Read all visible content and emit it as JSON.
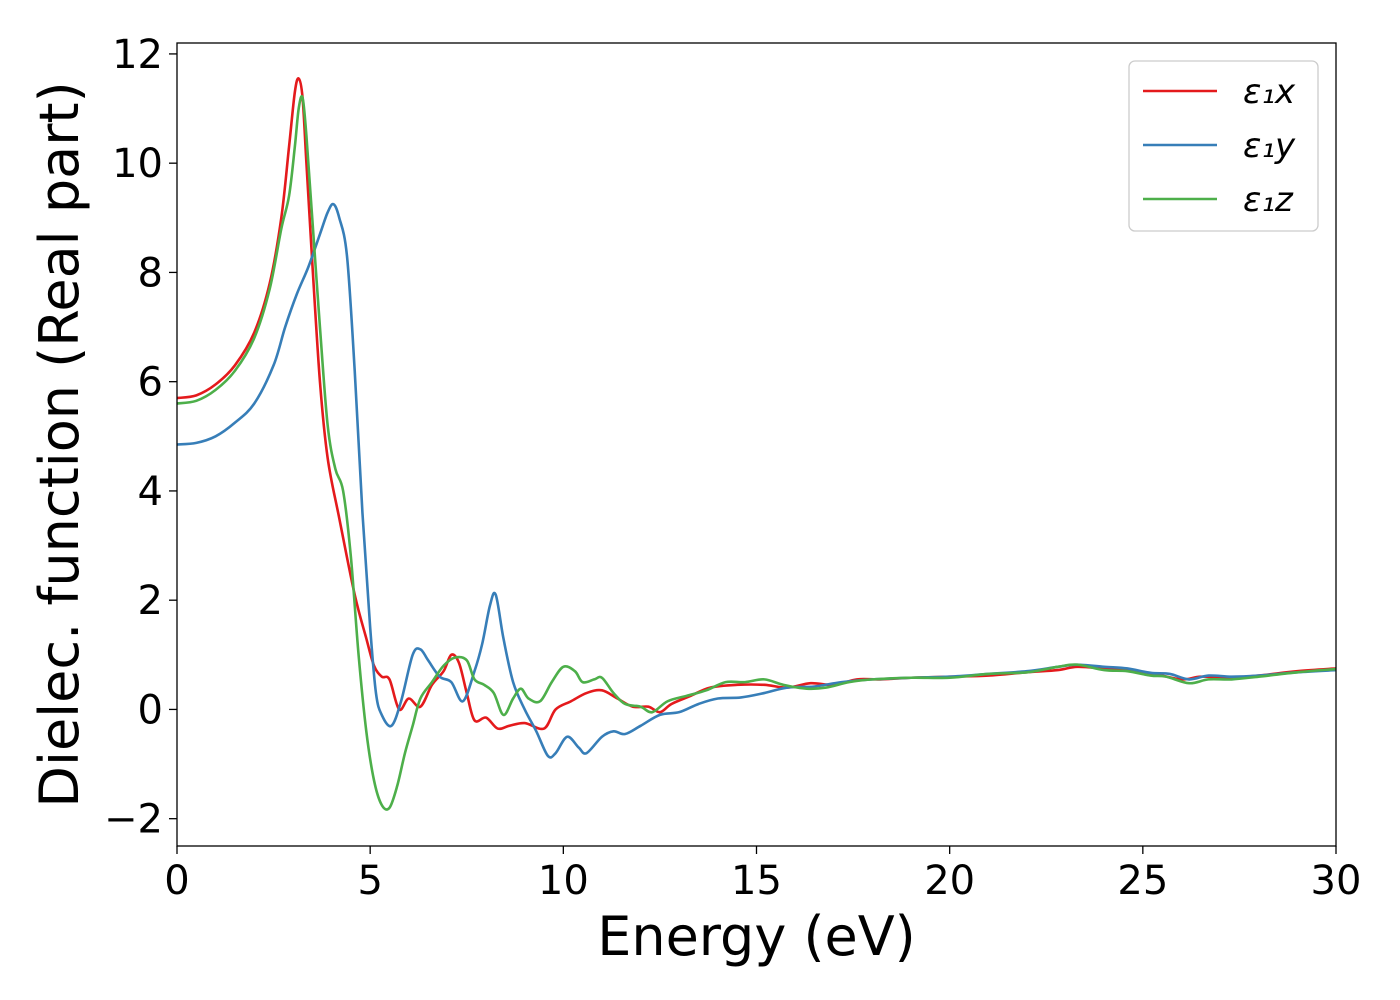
{
  "chart_data": {
    "type": "line",
    "title": "",
    "xlabel": "Energy (eV)",
    "ylabel": "Dielec. function (Real part)",
    "xlim": [
      0,
      30
    ],
    "ylim": [
      -2.5,
      12.2
    ],
    "xticks": [
      0,
      5,
      10,
      15,
      20,
      25,
      30
    ],
    "xtick_labels": [
      "0",
      "5",
      "10",
      "15",
      "20",
      "25",
      "30"
    ],
    "yticks": [
      -2,
      0,
      2,
      4,
      6,
      8,
      10,
      12
    ],
    "ytick_labels": [
      "−2",
      "0",
      "2",
      "4",
      "6",
      "8",
      "10",
      "12"
    ],
    "grid": false,
    "legend_position": "top-right",
    "series": [
      {
        "name": "ε₁x",
        "color": "#e41a1c",
        "points": [
          [
            0,
            5.7
          ],
          [
            0.5,
            5.75
          ],
          [
            1,
            5.95
          ],
          [
            1.5,
            6.3
          ],
          [
            2,
            6.9
          ],
          [
            2.4,
            7.8
          ],
          [
            2.7,
            9.0
          ],
          [
            2.9,
            10.3
          ],
          [
            3.05,
            11.3
          ],
          [
            3.15,
            11.55
          ],
          [
            3.25,
            11.2
          ],
          [
            3.35,
            10.0
          ],
          [
            3.5,
            8.2
          ],
          [
            3.7,
            6.0
          ],
          [
            3.9,
            4.6
          ],
          [
            4.2,
            3.5
          ],
          [
            4.6,
            2.1
          ],
          [
            4.9,
            1.3
          ],
          [
            5.1,
            0.8
          ],
          [
            5.3,
            0.6
          ],
          [
            5.5,
            0.55
          ],
          [
            5.75,
            0.0
          ],
          [
            6.0,
            0.2
          ],
          [
            6.3,
            0.05
          ],
          [
            6.6,
            0.45
          ],
          [
            6.9,
            0.7
          ],
          [
            7.1,
            1.0
          ],
          [
            7.3,
            0.85
          ],
          [
            7.5,
            0.3
          ],
          [
            7.7,
            -0.2
          ],
          [
            8.0,
            -0.15
          ],
          [
            8.3,
            -0.35
          ],
          [
            8.6,
            -0.3
          ],
          [
            9.0,
            -0.25
          ],
          [
            9.5,
            -0.35
          ],
          [
            9.8,
            0.0
          ],
          [
            10.2,
            0.15
          ],
          [
            10.6,
            0.3
          ],
          [
            11.0,
            0.35
          ],
          [
            11.4,
            0.2
          ],
          [
            11.8,
            0.05
          ],
          [
            12.2,
            0.05
          ],
          [
            12.5,
            -0.05
          ],
          [
            12.8,
            0.1
          ],
          [
            13.3,
            0.25
          ],
          [
            13.8,
            0.4
          ],
          [
            14.5,
            0.45
          ],
          [
            15.2,
            0.45
          ],
          [
            15.8,
            0.4
          ],
          [
            16.4,
            0.48
          ],
          [
            17.0,
            0.45
          ],
          [
            17.6,
            0.55
          ],
          [
            18.2,
            0.55
          ],
          [
            19.0,
            0.58
          ],
          [
            20.0,
            0.6
          ],
          [
            21.0,
            0.62
          ],
          [
            22.0,
            0.68
          ],
          [
            22.8,
            0.72
          ],
          [
            23.3,
            0.78
          ],
          [
            24.0,
            0.75
          ],
          [
            24.6,
            0.72
          ],
          [
            25.3,
            0.65
          ],
          [
            26.0,
            0.55
          ],
          [
            26.5,
            0.6
          ],
          [
            27.2,
            0.58
          ],
          [
            28.0,
            0.62
          ],
          [
            29.0,
            0.7
          ],
          [
            30.0,
            0.75
          ]
        ]
      },
      {
        "name": "ε₁y",
        "color": "#377eb8",
        "points": [
          [
            0,
            4.85
          ],
          [
            0.5,
            4.88
          ],
          [
            1,
            5.0
          ],
          [
            1.5,
            5.25
          ],
          [
            2,
            5.6
          ],
          [
            2.5,
            6.3
          ],
          [
            2.8,
            7.0
          ],
          [
            3.1,
            7.6
          ],
          [
            3.4,
            8.1
          ],
          [
            3.7,
            8.7
          ],
          [
            3.9,
            9.1
          ],
          [
            4.05,
            9.25
          ],
          [
            4.2,
            9.0
          ],
          [
            4.4,
            8.3
          ],
          [
            4.6,
            6.2
          ],
          [
            4.8,
            3.6
          ],
          [
            5.0,
            1.5
          ],
          [
            5.15,
            0.3
          ],
          [
            5.3,
            -0.1
          ],
          [
            5.55,
            -0.3
          ],
          [
            5.8,
            0.15
          ],
          [
            6.1,
            1.0
          ],
          [
            6.3,
            1.1
          ],
          [
            6.5,
            0.9
          ],
          [
            6.8,
            0.6
          ],
          [
            7.1,
            0.5
          ],
          [
            7.4,
            0.15
          ],
          [
            7.7,
            0.7
          ],
          [
            7.9,
            1.2
          ],
          [
            8.1,
            1.9
          ],
          [
            8.25,
            2.1
          ],
          [
            8.45,
            1.3
          ],
          [
            8.7,
            0.5
          ],
          [
            9.0,
            0.0
          ],
          [
            9.3,
            -0.4
          ],
          [
            9.6,
            -0.85
          ],
          [
            9.8,
            -0.8
          ],
          [
            10.1,
            -0.5
          ],
          [
            10.4,
            -0.7
          ],
          [
            10.6,
            -0.8
          ],
          [
            11.0,
            -0.5
          ],
          [
            11.3,
            -0.4
          ],
          [
            11.6,
            -0.45
          ],
          [
            12.0,
            -0.3
          ],
          [
            12.5,
            -0.1
          ],
          [
            13.0,
            -0.05
          ],
          [
            13.5,
            0.1
          ],
          [
            14.0,
            0.2
          ],
          [
            14.6,
            0.22
          ],
          [
            15.2,
            0.3
          ],
          [
            15.8,
            0.4
          ],
          [
            16.5,
            0.42
          ],
          [
            17.2,
            0.5
          ],
          [
            18.0,
            0.55
          ],
          [
            19.0,
            0.58
          ],
          [
            20.0,
            0.6
          ],
          [
            21.0,
            0.65
          ],
          [
            22.0,
            0.7
          ],
          [
            22.8,
            0.78
          ],
          [
            23.3,
            0.82
          ],
          [
            24.0,
            0.78
          ],
          [
            24.6,
            0.75
          ],
          [
            25.2,
            0.67
          ],
          [
            25.7,
            0.65
          ],
          [
            26.2,
            0.55
          ],
          [
            26.7,
            0.62
          ],
          [
            27.3,
            0.6
          ],
          [
            28.0,
            0.62
          ],
          [
            29.0,
            0.68
          ],
          [
            30.0,
            0.72
          ]
        ]
      },
      {
        "name": "ε₁z",
        "color": "#4daf4a",
        "points": [
          [
            0,
            5.6
          ],
          [
            0.5,
            5.65
          ],
          [
            1,
            5.85
          ],
          [
            1.5,
            6.2
          ],
          [
            2,
            6.8
          ],
          [
            2.4,
            7.7
          ],
          [
            2.7,
            8.8
          ],
          [
            2.9,
            9.4
          ],
          [
            3.05,
            10.3
          ],
          [
            3.15,
            11.0
          ],
          [
            3.25,
            11.2
          ],
          [
            3.35,
            10.5
          ],
          [
            3.5,
            9.0
          ],
          [
            3.7,
            7.0
          ],
          [
            3.9,
            5.2
          ],
          [
            4.1,
            4.4
          ],
          [
            4.3,
            4.0
          ],
          [
            4.5,
            2.8
          ],
          [
            4.7,
            1.0
          ],
          [
            4.9,
            -0.4
          ],
          [
            5.1,
            -1.3
          ],
          [
            5.3,
            -1.75
          ],
          [
            5.5,
            -1.8
          ],
          [
            5.7,
            -1.4
          ],
          [
            5.9,
            -0.8
          ],
          [
            6.1,
            -0.3
          ],
          [
            6.3,
            0.2
          ],
          [
            6.6,
            0.5
          ],
          [
            6.9,
            0.8
          ],
          [
            7.2,
            0.95
          ],
          [
            7.5,
            0.9
          ],
          [
            7.7,
            0.55
          ],
          [
            7.95,
            0.45
          ],
          [
            8.2,
            0.3
          ],
          [
            8.45,
            -0.1
          ],
          [
            8.7,
            0.2
          ],
          [
            8.9,
            0.38
          ],
          [
            9.1,
            0.2
          ],
          [
            9.4,
            0.15
          ],
          [
            9.7,
            0.5
          ],
          [
            10.0,
            0.78
          ],
          [
            10.3,
            0.7
          ],
          [
            10.5,
            0.5
          ],
          [
            10.8,
            0.55
          ],
          [
            11.0,
            0.58
          ],
          [
            11.3,
            0.3
          ],
          [
            11.6,
            0.1
          ],
          [
            12.0,
            0.05
          ],
          [
            12.3,
            -0.05
          ],
          [
            12.7,
            0.15
          ],
          [
            13.2,
            0.25
          ],
          [
            13.7,
            0.35
          ],
          [
            14.2,
            0.5
          ],
          [
            14.7,
            0.5
          ],
          [
            15.2,
            0.55
          ],
          [
            15.7,
            0.45
          ],
          [
            16.3,
            0.38
          ],
          [
            16.8,
            0.4
          ],
          [
            17.4,
            0.5
          ],
          [
            18.0,
            0.55
          ],
          [
            19.0,
            0.58
          ],
          [
            20.0,
            0.58
          ],
          [
            21.0,
            0.65
          ],
          [
            22.0,
            0.68
          ],
          [
            22.8,
            0.78
          ],
          [
            23.3,
            0.82
          ],
          [
            24.0,
            0.72
          ],
          [
            24.6,
            0.7
          ],
          [
            25.2,
            0.62
          ],
          [
            25.6,
            0.6
          ],
          [
            26.2,
            0.48
          ],
          [
            26.7,
            0.55
          ],
          [
            27.3,
            0.55
          ],
          [
            28.0,
            0.6
          ],
          [
            29.0,
            0.68
          ],
          [
            30.0,
            0.74
          ]
        ]
      }
    ]
  }
}
